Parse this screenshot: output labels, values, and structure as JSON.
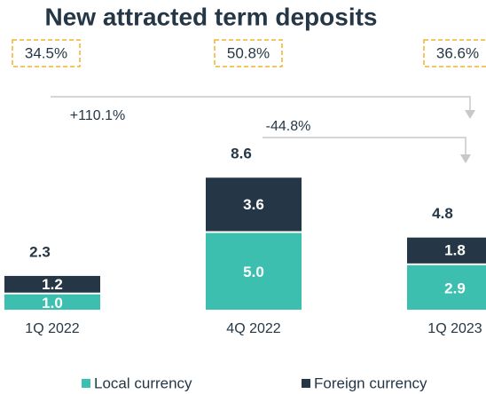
{
  "chart_data": {
    "type": "bar",
    "title": "New attracted term deposits",
    "categories": [
      "1Q 2022",
      "4Q 2022",
      "1Q 2023"
    ],
    "series": [
      {
        "name": "Local currency",
        "color": "#3cbfae",
        "values": [
          1.0,
          5.0,
          2.9
        ],
        "value_labels": [
          "1.0",
          "5.0",
          "2.9"
        ]
      },
      {
        "name": "Foreign currency",
        "color": "#253746",
        "values": [
          1.2,
          3.6,
          1.8
        ]
      }
    ],
    "totals": [
      2.3,
      8.6,
      4.8
    ],
    "shares": [
      "34.5%",
      "50.8%",
      "36.6%"
    ],
    "growth": [
      "+110.1%",
      "-44.8%"
    ],
    "legend": "bottom"
  }
}
